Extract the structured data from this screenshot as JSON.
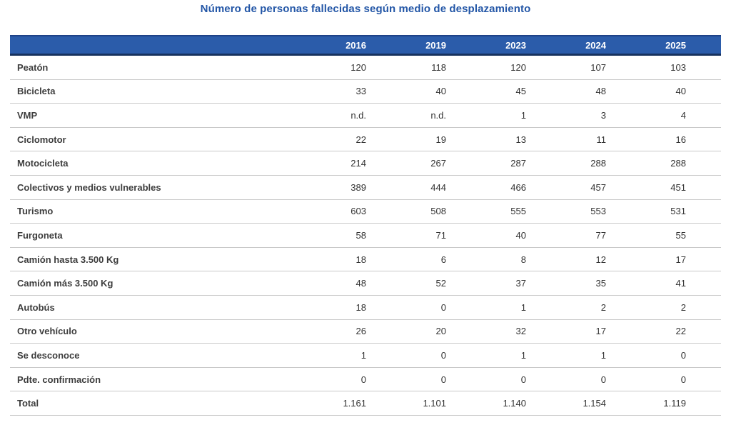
{
  "chart_data": {
    "type": "table",
    "title": "Número de personas fallecidas según medio de desplazamiento",
    "columns": [
      "2016",
      "2019",
      "2023",
      "2024",
      "2025"
    ],
    "rows": [
      {
        "label": "Peatón",
        "values": [
          "120",
          "118",
          "120",
          "107",
          "103"
        ]
      },
      {
        "label": "Bicicleta",
        "values": [
          "33",
          "40",
          "45",
          "48",
          "40"
        ]
      },
      {
        "label": "VMP",
        "values": [
          "n.d.",
          "n.d.",
          "1",
          "3",
          "4"
        ]
      },
      {
        "label": "Ciclomotor",
        "values": [
          "22",
          "19",
          "13",
          "11",
          "16"
        ]
      },
      {
        "label": "Motocicleta",
        "values": [
          "214",
          "267",
          "287",
          "288",
          "288"
        ]
      },
      {
        "label": "Colectivos y medios vulnerables",
        "values": [
          "389",
          "444",
          "466",
          "457",
          "451"
        ]
      },
      {
        "label": "Turismo",
        "values": [
          "603",
          "508",
          "555",
          "553",
          "531"
        ]
      },
      {
        "label": "Furgoneta",
        "values": [
          "58",
          "71",
          "40",
          "77",
          "55"
        ]
      },
      {
        "label": "Camión hasta 3.500 Kg",
        "values": [
          "18",
          "6",
          "8",
          "12",
          "17"
        ]
      },
      {
        "label": "Camión más 3.500 Kg",
        "values": [
          "48",
          "52",
          "37",
          "35",
          "41"
        ]
      },
      {
        "label": "Autobús",
        "values": [
          "18",
          "0",
          "1",
          "2",
          "2"
        ]
      },
      {
        "label": "Otro vehículo",
        "values": [
          "26",
          "20",
          "32",
          "17",
          "22"
        ]
      },
      {
        "label": "Se desconoce",
        "values": [
          "1",
          "0",
          "1",
          "1",
          "0"
        ]
      },
      {
        "label": "Pdte. confirmación",
        "values": [
          "0",
          "0",
          "0",
          "0",
          "0"
        ]
      },
      {
        "label": "Total",
        "values": [
          "1.161",
          "1.101",
          "1.140",
          "1.154",
          "1.119"
        ]
      }
    ],
    "layout_hints": {
      "header_position": "top",
      "value_alignment": "right",
      "grid": "horizontal-separators-only"
    }
  },
  "colors": {
    "title_text": "#2457a7",
    "header_background": "#2b5caa",
    "header_border_top": "#1e4287",
    "header_border_bottom": "#17325e",
    "header_text": "#ffffff",
    "row_label_text": "#3d3d3d",
    "value_text": "#333333",
    "row_separator": "#c9c9c9"
  }
}
